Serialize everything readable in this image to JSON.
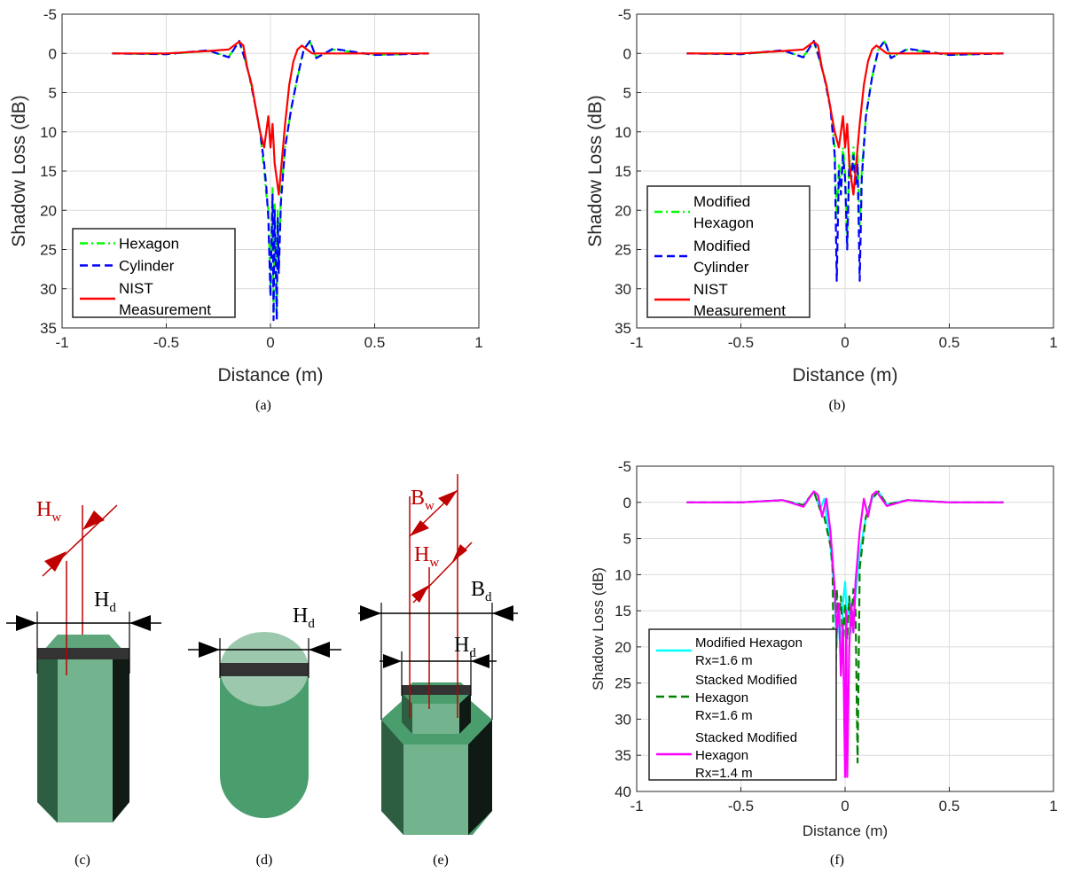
{
  "chart_data": [
    {
      "id": "a",
      "type": "line",
      "caption": "(a)",
      "xlabel": "Distance (m)",
      "ylabel": "Shadow Loss (dB)",
      "xlim": [
        -1,
        1
      ],
      "ylim": [
        -5,
        35
      ],
      "y_reversed": true,
      "xticks": [
        "-1",
        "-0.5",
        "0",
        "0.5",
        "1"
      ],
      "yticks": [
        "-5",
        "0",
        "5",
        "10",
        "15",
        "20",
        "25",
        "30",
        "35"
      ],
      "grid": true,
      "legend_position": "bottom-left",
      "series": [
        {
          "name": "Hexagon",
          "color": "#00ff00",
          "style": "dashdot",
          "x": [
            -0.76,
            -0.5,
            -0.3,
            -0.2,
            -0.15,
            -0.12,
            -0.1,
            -0.07,
            -0.05,
            -0.03,
            -0.02,
            -0.01,
            0,
            0.01,
            0.015,
            0.02,
            0.025,
            0.03,
            0.035,
            0.04,
            0.05,
            0.07,
            0.1,
            0.13,
            0.16,
            0.19,
            0.22,
            0.3,
            0.5,
            0.76
          ],
          "y": [
            0,
            0.1,
            -0.3,
            0.4,
            -1.5,
            1,
            3,
            7,
            10,
            15,
            18,
            20,
            30,
            17,
            33,
            19,
            25,
            34,
            20,
            27,
            18,
            12,
            7,
            3,
            -0.5,
            -1.5,
            0.5,
            -0.5,
            0.2,
            0
          ]
        },
        {
          "name": "Cylinder",
          "color": "#0000ff",
          "style": "dashed",
          "x": [
            -0.76,
            -0.5,
            -0.3,
            -0.2,
            -0.15,
            -0.12,
            -0.1,
            -0.07,
            -0.05,
            -0.03,
            -0.02,
            -0.01,
            0,
            0.01,
            0.015,
            0.02,
            0.025,
            0.03,
            0.035,
            0.04,
            0.05,
            0.07,
            0.1,
            0.13,
            0.16,
            0.19,
            0.22,
            0.3,
            0.5,
            0.76
          ],
          "y": [
            0,
            0.1,
            -0.4,
            0.5,
            -1.6,
            1,
            3,
            7,
            10,
            14,
            17,
            21,
            31,
            18,
            34,
            20,
            26,
            34,
            21,
            28,
            19,
            12,
            7,
            3,
            -0.5,
            -1.6,
            0.6,
            -0.6,
            0.2,
            0
          ]
        },
        {
          "name": "NIST Measurement",
          "color": "#ff0000",
          "style": "solid",
          "x": [
            -0.76,
            -0.5,
            -0.3,
            -0.2,
            -0.15,
            -0.13,
            -0.11,
            -0.09,
            -0.07,
            -0.05,
            -0.03,
            -0.01,
            0,
            0.01,
            0.02,
            0.03,
            0.04,
            0.05,
            0.07,
            0.09,
            0.11,
            0.13,
            0.15,
            0.2,
            0.3,
            0.5,
            0.76
          ],
          "y": [
            0,
            0,
            -0.3,
            -0.5,
            -1.5,
            -1,
            2,
            4,
            7,
            10,
            12,
            8,
            12,
            9,
            14,
            16,
            18,
            15,
            9,
            4,
            1,
            -0.5,
            -1,
            0,
            0,
            0,
            0
          ]
        }
      ]
    },
    {
      "id": "b",
      "type": "line",
      "caption": "(b)",
      "xlabel": "Distance (m)",
      "ylabel": "Shadow Loss (dB)",
      "xlim": [
        -1,
        1
      ],
      "ylim": [
        -5,
        35
      ],
      "y_reversed": true,
      "xticks": [
        "-1",
        "-0.5",
        "0",
        "0.5",
        "1"
      ],
      "yticks": [
        "-5",
        "0",
        "5",
        "10",
        "15",
        "20",
        "25",
        "30",
        "35"
      ],
      "grid": true,
      "legend_position": "bottom-left",
      "series": [
        {
          "name": "Modified Hexagon",
          "color": "#00ff00",
          "style": "dashdot",
          "x": [
            -0.76,
            -0.5,
            -0.3,
            -0.2,
            -0.15,
            -0.12,
            -0.1,
            -0.07,
            -0.05,
            -0.04,
            -0.03,
            -0.02,
            -0.01,
            0,
            0.01,
            0.02,
            0.03,
            0.04,
            0.05,
            0.06,
            0.07,
            0.08,
            0.1,
            0.13,
            0.16,
            0.19,
            0.22,
            0.3,
            0.5,
            0.76
          ],
          "y": [
            0,
            0.1,
            -0.3,
            0.4,
            -1.5,
            1,
            3,
            7,
            12,
            21,
            14,
            17,
            12,
            15,
            24,
            13,
            15,
            12,
            16,
            13,
            22,
            15,
            8,
            3,
            -0.5,
            -1.5,
            0.5,
            -0.5,
            0.2,
            0
          ]
        },
        {
          "name": "Modified Cylinder",
          "color": "#0000ff",
          "style": "dashed",
          "x": [
            -0.76,
            -0.5,
            -0.3,
            -0.2,
            -0.15,
            -0.12,
            -0.1,
            -0.07,
            -0.05,
            -0.04,
            -0.03,
            -0.02,
            -0.01,
            0,
            0.01,
            0.02,
            0.03,
            0.04,
            0.05,
            0.06,
            0.07,
            0.08,
            0.1,
            0.13,
            0.16,
            0.19,
            0.22,
            0.3,
            0.5,
            0.76
          ],
          "y": [
            0,
            0.1,
            -0.4,
            0.5,
            -1.6,
            1,
            3,
            7,
            13,
            29,
            15,
            18,
            13,
            16,
            25,
            14,
            16,
            13,
            17,
            14,
            29,
            16,
            8,
            3,
            -0.5,
            -1.6,
            0.6,
            -0.6,
            0.2,
            0
          ]
        },
        {
          "name": "NIST Measurement",
          "color": "#ff0000",
          "style": "solid",
          "x": [
            -0.76,
            -0.5,
            -0.3,
            -0.2,
            -0.15,
            -0.13,
            -0.11,
            -0.09,
            -0.07,
            -0.05,
            -0.03,
            -0.01,
            0,
            0.01,
            0.02,
            0.03,
            0.04,
            0.05,
            0.07,
            0.09,
            0.11,
            0.13,
            0.15,
            0.2,
            0.3,
            0.5,
            0.76
          ],
          "y": [
            0,
            0,
            -0.3,
            -0.5,
            -1.5,
            -1,
            2,
            4,
            7,
            10,
            12,
            8,
            12,
            9,
            14,
            16,
            18,
            15,
            9,
            4,
            1,
            -0.5,
            -1,
            0,
            0,
            0,
            0
          ]
        }
      ]
    },
    {
      "id": "f",
      "type": "line",
      "caption": "(f)",
      "xlabel": "Distance (m)",
      "ylabel": "Shadow Loss (dB)",
      "xlim": [
        -1,
        1
      ],
      "ylim": [
        -5,
        40
      ],
      "y_reversed": true,
      "xticks": [
        "-1",
        "-0.5",
        "0",
        "0.5",
        "1"
      ],
      "yticks": [
        "-5",
        "0",
        "5",
        "10",
        "15",
        "20",
        "25",
        "30",
        "35",
        "40"
      ],
      "grid": true,
      "legend_position": "bottom-left",
      "series": [
        {
          "name": "Modified Hexagon Rx=1.6 m",
          "color": "#00ffff",
          "style": "solid",
          "x": [
            -0.76,
            -0.5,
            -0.3,
            -0.2,
            -0.15,
            -0.12,
            -0.1,
            -0.07,
            -0.05,
            -0.04,
            -0.03,
            -0.02,
            -0.01,
            0,
            0.01,
            0.02,
            0.03,
            0.04,
            0.05,
            0.07,
            0.1,
            0.13,
            0.16,
            0.2,
            0.3,
            0.5,
            0.76
          ],
          "y": [
            0,
            0,
            -0.3,
            0.4,
            -1.5,
            1,
            -0.5,
            6,
            13,
            20,
            15,
            20,
            14,
            11,
            17,
            13,
            18,
            16,
            13,
            7,
            2,
            -0.5,
            -1.5,
            0.3,
            -0.3,
            0,
            0
          ]
        },
        {
          "name": "Stacked Modified Hexagon Rx=1.6 m",
          "color": "#008000",
          "style": "dashed",
          "x": [
            -0.76,
            -0.5,
            -0.3,
            -0.2,
            -0.15,
            -0.12,
            -0.1,
            -0.07,
            -0.06,
            -0.05,
            -0.04,
            -0.03,
            -0.02,
            -0.01,
            0,
            0.01,
            0.02,
            0.03,
            0.04,
            0.05,
            0.06,
            0.07,
            0.1,
            0.13,
            0.16,
            0.2,
            0.3,
            0.5,
            0.76
          ],
          "y": [
            0,
            0,
            -0.3,
            0.4,
            -1.5,
            1,
            2,
            6,
            9,
            36,
            12,
            17,
            13,
            20,
            14,
            19,
            13,
            17,
            12,
            15,
            36,
            9,
            2,
            -0.5,
            -1.5,
            0.3,
            -0.3,
            0,
            0
          ]
        },
        {
          "name": "Stacked Modified Hexagon Rx=1.4 m",
          "color": "#ff00ff",
          "style": "solid",
          "x": [
            -0.76,
            -0.5,
            -0.3,
            -0.2,
            -0.15,
            -0.13,
            -0.11,
            -0.09,
            -0.07,
            -0.05,
            -0.04,
            -0.03,
            -0.02,
            -0.01,
            0,
            0.005,
            0.01,
            0.02,
            0.03,
            0.04,
            0.05,
            0.07,
            0.09,
            0.11,
            0.13,
            0.15,
            0.2,
            0.3,
            0.5,
            0.76
          ],
          "y": [
            0,
            0,
            -0.3,
            0.6,
            -1.5,
            -1,
            2,
            -0.5,
            4,
            12,
            18,
            14,
            24,
            17,
            38,
            15,
            38,
            20,
            14,
            18,
            11,
            4,
            -0.5,
            2,
            -1,
            -1.5,
            0.5,
            -0.3,
            0,
            0
          ]
        }
      ]
    }
  ],
  "diagrams": {
    "c": {
      "caption": "(c)",
      "hw_main": "H",
      "hw_sub": "w",
      "hd_main": "H",
      "hd_sub": "d"
    },
    "d": {
      "caption": "(d)",
      "hd_main": "H",
      "hd_sub": "d"
    },
    "e": {
      "caption": "(e)",
      "bw_main": "B",
      "bw_sub": "w",
      "hw_main": "H",
      "hw_sub": "w",
      "hd_main": "H",
      "hd_sub": "d",
      "bd_main": "B",
      "bd_sub": "d"
    }
  },
  "colors": {
    "dim_red": "#c00000",
    "green_light": "#73b48f",
    "green_mid": "#4a9e6e",
    "green_dark": "#2d5e42",
    "green_darkest": "#0f1a14"
  }
}
